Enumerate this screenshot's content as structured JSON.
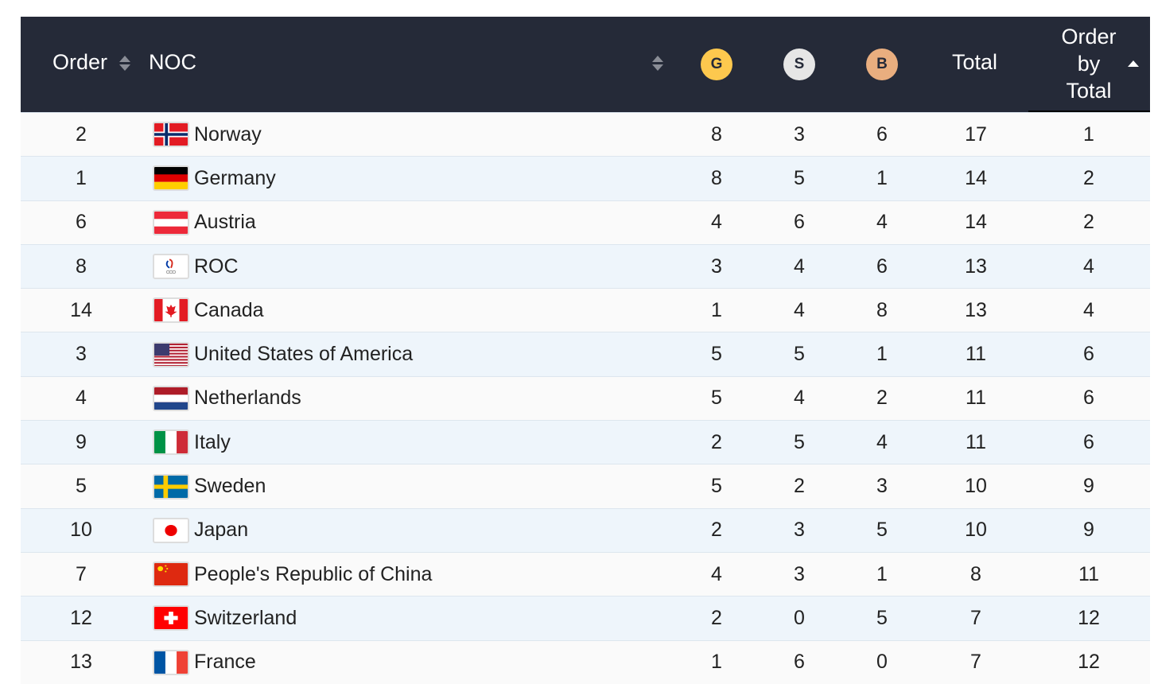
{
  "header": {
    "order": "Order",
    "noc": "NOC",
    "gold": "G",
    "silver": "S",
    "bronze": "B",
    "total": "Total",
    "order_by_total": [
      "Order",
      "by",
      "Total"
    ]
  },
  "colors": {
    "header_bg": "#252a38",
    "gold": "#fdc84e",
    "silver": "#e6e6e6",
    "bronze": "#e9ae7f"
  },
  "rows": [
    {
      "order": "2",
      "flag": "norway-flag-icon",
      "noc": "Norway",
      "g": "8",
      "s": "3",
      "b": "6",
      "total": "17",
      "rank": "1"
    },
    {
      "order": "1",
      "flag": "germany-flag-icon",
      "noc": "Germany",
      "g": "8",
      "s": "5",
      "b": "1",
      "total": "14",
      "rank": "2"
    },
    {
      "order": "6",
      "flag": "austria-flag-icon",
      "noc": "Austria",
      "g": "4",
      "s": "6",
      "b": "4",
      "total": "14",
      "rank": "2"
    },
    {
      "order": "8",
      "flag": "roc-flag-icon",
      "noc": "ROC",
      "g": "3",
      "s": "4",
      "b": "6",
      "total": "13",
      "rank": "4"
    },
    {
      "order": "14",
      "flag": "canada-flag-icon",
      "noc": "Canada",
      "g": "1",
      "s": "4",
      "b": "8",
      "total": "13",
      "rank": "4"
    },
    {
      "order": "3",
      "flag": "usa-flag-icon",
      "noc": "United States of America",
      "g": "5",
      "s": "5",
      "b": "1",
      "total": "11",
      "rank": "6"
    },
    {
      "order": "4",
      "flag": "netherlands-flag-icon",
      "noc": "Netherlands",
      "g": "5",
      "s": "4",
      "b": "2",
      "total": "11",
      "rank": "6"
    },
    {
      "order": "9",
      "flag": "italy-flag-icon",
      "noc": "Italy",
      "g": "2",
      "s": "5",
      "b": "4",
      "total": "11",
      "rank": "6"
    },
    {
      "order": "5",
      "flag": "sweden-flag-icon",
      "noc": "Sweden",
      "g": "5",
      "s": "2",
      "b": "3",
      "total": "10",
      "rank": "9"
    },
    {
      "order": "10",
      "flag": "japan-flag-icon",
      "noc": "Japan",
      "g": "2",
      "s": "3",
      "b": "5",
      "total": "10",
      "rank": "9"
    },
    {
      "order": "7",
      "flag": "china-flag-icon",
      "noc": "People's Republic of China",
      "g": "4",
      "s": "3",
      "b": "1",
      "total": "8",
      "rank": "11"
    },
    {
      "order": "12",
      "flag": "switzerland-flag-icon",
      "noc": "Switzerland",
      "g": "2",
      "s": "0",
      "b": "5",
      "total": "7",
      "rank": "12"
    },
    {
      "order": "13",
      "flag": "france-flag-icon",
      "noc": "France",
      "g": "1",
      "s": "6",
      "b": "0",
      "total": "7",
      "rank": "12"
    }
  ]
}
